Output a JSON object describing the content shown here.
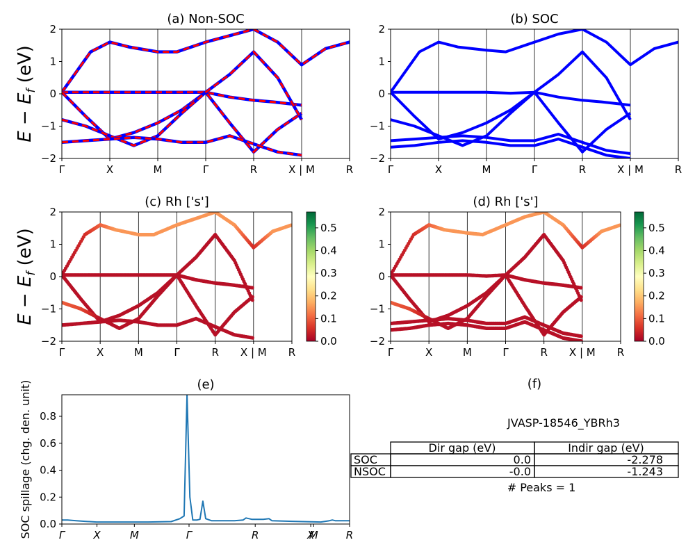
{
  "figure": {
    "id_label": "JVASP-18546_YBRh3",
    "peaks_label": "# Peaks = 1",
    "ylabel_band": "E − E_f (eV)",
    "ylabel_spillage": "SOC spillage (chg. den. unit)"
  },
  "colors": {
    "blue": "#0000ff",
    "red": "#ff0000",
    "spillage_line": "#1f77b4",
    "cmap_stops": [
      "#a50026",
      "#d73027",
      "#f46d43",
      "#fdae61",
      "#fee08b",
      "#ffffbf",
      "#d9ef8b",
      "#a6d96a",
      "#66bd63",
      "#1a9850",
      "#006837"
    ]
  },
  "chart_data": [
    {
      "id": "a",
      "type": "line",
      "title": "(a) Non-SOC",
      "ylim": [
        -2,
        2
      ],
      "yticks": [
        -2,
        -1,
        0,
        1,
        2
      ],
      "kpath": [
        "Γ",
        "X",
        "M",
        "Γ",
        "R",
        "X | M",
        "R"
      ],
      "series": [
        {
          "x": [
            0,
            0.6,
            1,
            1.4,
            2,
            2.4,
            3,
            3.5,
            4,
            4.5,
            5,
            5.5,
            6
          ],
          "y": [
            0.05,
            1.3,
            1.6,
            1.45,
            1.3,
            1.3,
            1.6,
            1.8,
            2.0,
            1.6,
            0.9,
            1.4,
            1.6
          ]
        },
        {
          "x": [
            0,
            0.5,
            1,
            1.5,
            2,
            2.5,
            3,
            3.5,
            4,
            4.4,
            5
          ],
          "y": [
            0.05,
            0.05,
            0.05,
            0.05,
            0.05,
            0.05,
            0.05,
            -0.1,
            -0.2,
            -0.25,
            -0.35
          ]
        },
        {
          "x": [
            0,
            0.5,
            1,
            1.5,
            2,
            2.5,
            3,
            3.5,
            4,
            4.5,
            5
          ],
          "y": [
            0.05,
            -0.7,
            -1.4,
            -1.2,
            -0.9,
            -0.5,
            0.05,
            -0.9,
            -1.8,
            -1.1,
            -0.6
          ]
        },
        {
          "x": [
            0,
            0.5,
            1,
            1.5,
            2,
            2.5,
            3,
            3.5,
            4,
            4.5,
            5
          ],
          "y": [
            -0.8,
            -1.0,
            -1.3,
            -1.6,
            -1.3,
            -0.6,
            0.05,
            0.6,
            1.3,
            0.5,
            -0.8
          ]
        },
        {
          "x": [
            0,
            0.5,
            1,
            1.5,
            2,
            2.5,
            3,
            3.5,
            4,
            4.5,
            5
          ],
          "y": [
            -1.5,
            -1.45,
            -1.4,
            -1.35,
            -1.4,
            -1.5,
            -1.5,
            -1.3,
            -1.55,
            -1.8,
            -1.9
          ]
        }
      ]
    },
    {
      "id": "b",
      "type": "line",
      "title": "(b) SOC",
      "ylim": [
        -2,
        2
      ],
      "yticks": [
        -2,
        -1,
        0,
        1,
        2
      ],
      "kpath": [
        "Γ",
        "X",
        "M",
        "Γ",
        "R",
        "X | M",
        "R"
      ],
      "series": [
        {
          "x": [
            0,
            0.6,
            1,
            1.4,
            2,
            2.4,
            3,
            3.5,
            4,
            4.5,
            5,
            5.5,
            6
          ],
          "y": [
            0.05,
            1.3,
            1.6,
            1.45,
            1.35,
            1.3,
            1.6,
            1.85,
            2.0,
            1.6,
            0.9,
            1.4,
            1.6
          ]
        },
        {
          "x": [
            0,
            0.5,
            1,
            1.5,
            2,
            2.5,
            3,
            3.5,
            4,
            4.4,
            5
          ],
          "y": [
            0.05,
            0.05,
            0.05,
            0.05,
            0.05,
            0.02,
            0.05,
            -0.1,
            -0.2,
            -0.25,
            -0.35
          ]
        },
        {
          "x": [
            0,
            0.5,
            1,
            1.5,
            2,
            2.5,
            3,
            3.5,
            4,
            4.5,
            5
          ],
          "y": [
            0.05,
            -0.7,
            -1.4,
            -1.2,
            -0.9,
            -0.5,
            0.05,
            -0.9,
            -1.8,
            -1.1,
            -0.6
          ]
        },
        {
          "x": [
            0,
            0.5,
            1,
            1.5,
            2,
            2.5,
            3,
            3.5,
            4,
            4.5,
            5
          ],
          "y": [
            -0.8,
            -1.0,
            -1.3,
            -1.6,
            -1.3,
            -0.6,
            0.05,
            0.6,
            1.3,
            0.5,
            -0.8
          ]
        },
        {
          "x": [
            0,
            0.5,
            1,
            1.5,
            2,
            2.5,
            3,
            3.5,
            4,
            4.5,
            5
          ],
          "y": [
            -1.45,
            -1.4,
            -1.35,
            -1.3,
            -1.35,
            -1.45,
            -1.45,
            -1.25,
            -1.5,
            -1.75,
            -1.85
          ]
        },
        {
          "x": [
            0,
            0.5,
            1,
            1.5,
            2,
            2.5,
            3,
            3.5,
            4,
            4.5,
            5
          ],
          "y": [
            -1.65,
            -1.6,
            -1.5,
            -1.45,
            -1.5,
            -1.6,
            -1.6,
            -1.4,
            -1.65,
            -1.9,
            -2.0
          ]
        }
      ]
    },
    {
      "id": "c",
      "type": "scatter",
      "title": "(c)  Rh ['s']",
      "ylim": [
        -2,
        2
      ],
      "yticks": [
        -2,
        -1,
        0,
        1,
        2
      ],
      "kpath": [
        "Γ",
        "X",
        "M",
        "Γ",
        "R",
        "X | M",
        "R"
      ],
      "colorbar": {
        "ticks": [
          0.0,
          0.1,
          0.2,
          0.3,
          0.4,
          0.5
        ],
        "range": [
          0,
          0.57
        ],
        "tick_labels": [
          "0.0",
          "0.1",
          "0.2",
          "0.3",
          "0.4",
          "0.5"
        ]
      },
      "series": [
        {
          "x": [
            0,
            0.6,
            1,
            1.4,
            2,
            2.4,
            3,
            3.5,
            4,
            4.5,
            5,
            5.5,
            6
          ],
          "y": [
            0.05,
            1.3,
            1.6,
            1.45,
            1.3,
            1.3,
            1.6,
            1.8,
            2.0,
            1.6,
            0.9,
            1.4,
            1.6
          ],
          "w": [
            0.02,
            0.05,
            0.1,
            0.15,
            0.15,
            0.15,
            0.15,
            0.15,
            0.15,
            0.15,
            0.05,
            0.15,
            0.15
          ]
        },
        {
          "x": [
            0,
            0.5,
            1,
            1.5,
            2,
            2.5,
            3,
            3.5,
            4,
            4.4,
            5
          ],
          "y": [
            0.05,
            0.05,
            0.05,
            0.05,
            0.05,
            0.05,
            0.05,
            -0.1,
            -0.2,
            -0.25,
            -0.35
          ],
          "w": [
            0.02,
            0.02,
            0.02,
            0.02,
            0.02,
            0.02,
            0.02,
            0.02,
            0.02,
            0.02,
            0.02
          ]
        },
        {
          "x": [
            0,
            0.5,
            1,
            1.5,
            2,
            2.5,
            3,
            3.5,
            4,
            4.5,
            5
          ],
          "y": [
            0.05,
            -0.7,
            -1.4,
            -1.2,
            -0.9,
            -0.5,
            0.05,
            -0.9,
            -1.8,
            -1.1,
            -0.6
          ],
          "w": [
            0.02,
            0.02,
            0.02,
            0.02,
            0.02,
            0.02,
            0.02,
            0.02,
            0.02,
            0.02,
            0.02
          ]
        },
        {
          "x": [
            0,
            0.5,
            1,
            1.5,
            2,
            2.5,
            3,
            3.5,
            4,
            4.5,
            5
          ],
          "y": [
            -0.8,
            -1.0,
            -1.3,
            -1.6,
            -1.3,
            -0.6,
            0.05,
            0.6,
            1.3,
            0.5,
            -0.8
          ],
          "w": [
            0.1,
            0.08,
            0.02,
            0.02,
            0.02,
            0.02,
            0.02,
            0.02,
            0.02,
            0.02,
            0.02
          ]
        },
        {
          "x": [
            0,
            0.5,
            1,
            1.5,
            2,
            2.5,
            3,
            3.5,
            4,
            4.5,
            5
          ],
          "y": [
            -1.5,
            -1.45,
            -1.4,
            -1.35,
            -1.4,
            -1.5,
            -1.5,
            -1.3,
            -1.55,
            -1.8,
            -1.9
          ],
          "w": [
            0.02,
            0.02,
            0.02,
            0.02,
            0.02,
            0.02,
            0.02,
            0.02,
            0.02,
            0.02,
            0.02
          ]
        }
      ]
    },
    {
      "id": "d",
      "type": "scatter",
      "title": "(d) Rh ['s']",
      "ylim": [
        -2,
        2
      ],
      "yticks": [
        -2,
        -1,
        0,
        1,
        2
      ],
      "kpath": [
        "Γ",
        "X",
        "M",
        "Γ",
        "R",
        "X | M",
        "R"
      ],
      "colorbar": {
        "ticks": [
          0.0,
          0.1,
          0.2,
          0.3,
          0.4,
          0.5
        ],
        "range": [
          0,
          0.57
        ],
        "tick_labels": [
          "0.0",
          "0.1",
          "0.2",
          "0.3",
          "0.4",
          "0.5"
        ]
      },
      "series": [
        {
          "x": [
            0,
            0.6,
            1,
            1.4,
            2,
            2.4,
            3,
            3.5,
            4,
            4.5,
            5,
            5.5,
            6
          ],
          "y": [
            0.05,
            1.3,
            1.6,
            1.45,
            1.35,
            1.3,
            1.6,
            1.85,
            2.0,
            1.6,
            0.9,
            1.4,
            1.6
          ],
          "w": [
            0.02,
            0.05,
            0.1,
            0.15,
            0.15,
            0.15,
            0.15,
            0.15,
            0.15,
            0.15,
            0.05,
            0.15,
            0.15
          ]
        },
        {
          "x": [
            0,
            0.5,
            1,
            1.5,
            2,
            2.5,
            3,
            3.5,
            4,
            4.4,
            5
          ],
          "y": [
            0.05,
            0.05,
            0.05,
            0.05,
            0.05,
            0.02,
            0.05,
            -0.1,
            -0.2,
            -0.25,
            -0.35
          ],
          "w": [
            0.02,
            0.02,
            0.02,
            0.02,
            0.02,
            0.02,
            0.02,
            0.02,
            0.02,
            0.02,
            0.02
          ]
        },
        {
          "x": [
            0,
            0.5,
            1,
            1.5,
            2,
            2.5,
            3,
            3.5,
            4,
            4.5,
            5
          ],
          "y": [
            0.05,
            -0.7,
            -1.4,
            -1.2,
            -0.9,
            -0.5,
            0.05,
            -0.9,
            -1.8,
            -1.1,
            -0.6
          ],
          "w": [
            0.02,
            0.02,
            0.02,
            0.02,
            0.02,
            0.02,
            0.02,
            0.02,
            0.02,
            0.02,
            0.02
          ]
        },
        {
          "x": [
            0,
            0.5,
            1,
            1.5,
            2,
            2.5,
            3,
            3.5,
            4,
            4.5,
            5
          ],
          "y": [
            -0.8,
            -1.0,
            -1.3,
            -1.6,
            -1.3,
            -0.6,
            0.05,
            0.6,
            1.3,
            0.5,
            -0.8
          ],
          "w": [
            0.1,
            0.08,
            0.02,
            0.02,
            0.02,
            0.02,
            0.02,
            0.02,
            0.02,
            0.02,
            0.02
          ]
        },
        {
          "x": [
            0,
            0.5,
            1,
            1.5,
            2,
            2.5,
            3,
            3.5,
            4,
            4.5,
            5
          ],
          "y": [
            -1.45,
            -1.4,
            -1.35,
            -1.3,
            -1.35,
            -1.45,
            -1.45,
            -1.25,
            -1.5,
            -1.75,
            -1.85
          ],
          "w": [
            0.02,
            0.02,
            0.02,
            0.02,
            0.02,
            0.02,
            0.02,
            0.02,
            0.02,
            0.02,
            0.02
          ]
        },
        {
          "x": [
            0,
            0.5,
            1,
            1.5,
            2,
            2.5,
            3,
            3.5,
            4,
            4.5,
            5
          ],
          "y": [
            -1.65,
            -1.6,
            -1.5,
            -1.45,
            -1.5,
            -1.6,
            -1.6,
            -1.4,
            -1.65,
            -1.9,
            -2.0
          ],
          "w": [
            0.02,
            0.02,
            0.02,
            0.02,
            0.02,
            0.02,
            0.02,
            0.02,
            0.02,
            0.02,
            0.02
          ]
        }
      ]
    },
    {
      "id": "e",
      "type": "line",
      "title": "(e)",
      "ylabel": "SOC spillage (chg. den. unit)",
      "ylim": [
        0,
        0.96
      ],
      "yticks": [
        0.0,
        0.2,
        0.4,
        0.6,
        0.8
      ],
      "ytick_labels": [
        "0.0",
        "0.2",
        "0.4",
        "0.6",
        "0.8"
      ],
      "xlim": [
        0,
        1
      ],
      "kpath_ticks": [
        0,
        0.122,
        0.252,
        0.442,
        0.672,
        0.865,
        0.875,
        1.0
      ],
      "kpath_labels": [
        "Γ",
        "X",
        "M",
        "Γ",
        "R",
        "X",
        "M",
        "R"
      ],
      "x": [
        0,
        0.02,
        0.05,
        0.08,
        0.12,
        0.2,
        0.3,
        0.38,
        0.41,
        0.425,
        0.435,
        0.445,
        0.455,
        0.47,
        0.48,
        0.49,
        0.5,
        0.52,
        0.6,
        0.63,
        0.64,
        0.66,
        0.7,
        0.72,
        0.73,
        0.8,
        0.9,
        0.93,
        0.94,
        0.95,
        1.0
      ],
      "y": [
        0.03,
        0.03,
        0.025,
        0.02,
        0.015,
        0.015,
        0.015,
        0.018,
        0.04,
        0.06,
        0.96,
        0.2,
        0.03,
        0.03,
        0.035,
        0.17,
        0.04,
        0.025,
        0.025,
        0.03,
        0.045,
        0.035,
        0.035,
        0.04,
        0.025,
        0.02,
        0.015,
        0.025,
        0.03,
        0.025,
        0.025
      ]
    },
    {
      "id": "f",
      "type": "table",
      "title": "(f)",
      "columns": [
        "Dir gap (eV)",
        "Indir gap (eV)"
      ],
      "rows": [
        {
          "label": "SOC",
          "values": [
            "0.0",
            "-2.278"
          ]
        },
        {
          "label": "NSOC",
          "values": [
            "-0.0",
            "-1.243"
          ]
        }
      ]
    }
  ]
}
